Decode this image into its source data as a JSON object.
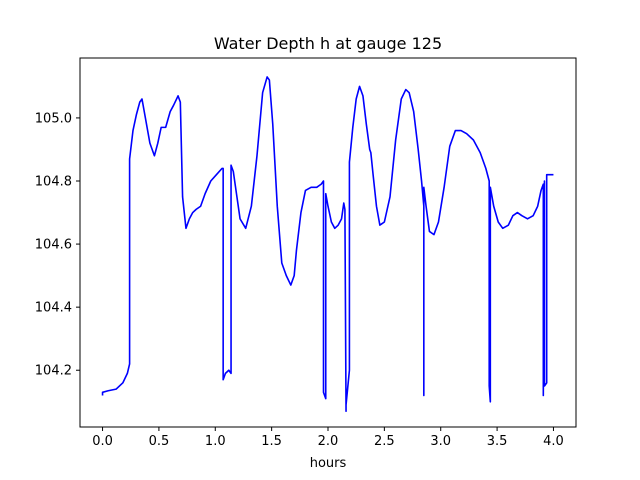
{
  "chart_data": {
    "type": "line",
    "title": "Water Depth h at gauge 125",
    "xlabel": "hours",
    "ylabel": "",
    "xlim": [
      -0.2,
      4.2
    ],
    "ylim": [
      104.02,
      105.19
    ],
    "grid": false,
    "x_ticks": [
      0.0,
      0.5,
      1.0,
      1.5,
      2.0,
      2.5,
      3.0,
      3.5,
      4.0
    ],
    "x_tick_labels": [
      "0.0",
      "0.5",
      "1.0",
      "1.5",
      "2.0",
      "2.5",
      "3.0",
      "3.5",
      "4.0"
    ],
    "y_ticks": [
      104.2,
      104.4,
      104.6,
      104.8,
      105.0
    ],
    "y_tick_labels": [
      "104.2",
      "104.4",
      "104.6",
      "104.8",
      "105.0"
    ],
    "series": [
      {
        "color": "#0000ff",
        "x": [
          0.0,
          0.0,
          0.05,
          0.12,
          0.18,
          0.22,
          0.24,
          0.24,
          0.27,
          0.3,
          0.33,
          0.35,
          0.38,
          0.42,
          0.46,
          0.49,
          0.52,
          0.56,
          0.6,
          0.63,
          0.67,
          0.69,
          0.71,
          0.74,
          0.77,
          0.8,
          0.83,
          0.87,
          0.91,
          0.96,
          1.01,
          1.06,
          1.07,
          1.07,
          1.09,
          1.12,
          1.14,
          1.14,
          1.16,
          1.18,
          1.22,
          1.27,
          1.32,
          1.37,
          1.42,
          1.46,
          1.48,
          1.51,
          1.55,
          1.59,
          1.63,
          1.67,
          1.7,
          1.72,
          1.76,
          1.8,
          1.85,
          1.9,
          1.94,
          1.96,
          1.96,
          1.98,
          1.98,
          2.0,
          2.03,
          2.06,
          2.09,
          2.12,
          2.14,
          2.15,
          2.16,
          2.16,
          2.19,
          2.19,
          2.22,
          2.25,
          2.28,
          2.31,
          2.34,
          2.37,
          2.38,
          2.4,
          2.43,
          2.46,
          2.5,
          2.55,
          2.6,
          2.65,
          2.69,
          2.72,
          2.76,
          2.8,
          2.83,
          2.85,
          2.85,
          2.85,
          2.87,
          2.9,
          2.94,
          2.98,
          3.03,
          3.08,
          3.13,
          3.18,
          3.23,
          3.29,
          3.35,
          3.4,
          3.43,
          3.43,
          3.44,
          3.44,
          3.47,
          3.51,
          3.55,
          3.6,
          3.64,
          3.68,
          3.72,
          3.77,
          3.82,
          3.86,
          3.89,
          3.91,
          3.91,
          3.92,
          3.92,
          3.94,
          3.94,
          3.95,
          3.95,
          4.0
        ],
        "values": [
          104.12,
          104.13,
          104.135,
          104.14,
          104.16,
          104.19,
          104.22,
          104.87,
          104.96,
          105.01,
          105.05,
          105.06,
          105.0,
          104.92,
          104.88,
          104.92,
          104.97,
          104.97,
          105.02,
          105.04,
          105.07,
          105.05,
          104.75,
          104.65,
          104.68,
          104.7,
          104.71,
          104.72,
          104.76,
          104.8,
          104.82,
          104.84,
          104.84,
          104.17,
          104.19,
          104.2,
          104.19,
          104.85,
          104.83,
          104.78,
          104.68,
          104.65,
          104.72,
          104.88,
          105.08,
          105.13,
          105.12,
          104.98,
          104.72,
          104.54,
          104.5,
          104.47,
          104.5,
          104.58,
          104.7,
          104.77,
          104.78,
          104.78,
          104.79,
          104.8,
          104.13,
          104.11,
          104.76,
          104.72,
          104.67,
          104.65,
          104.66,
          104.68,
          104.73,
          104.71,
          104.07,
          104.09,
          104.2,
          104.86,
          104.97,
          105.06,
          105.1,
          105.07,
          104.98,
          104.9,
          104.89,
          104.82,
          104.72,
          104.66,
          104.67,
          104.75,
          104.93,
          105.06,
          105.09,
          105.08,
          105.02,
          104.9,
          104.8,
          104.72,
          104.12,
          104.78,
          104.72,
          104.64,
          104.63,
          104.67,
          104.78,
          104.91,
          104.96,
          104.96,
          104.95,
          104.93,
          104.89,
          104.84,
          104.8,
          104.15,
          104.1,
          104.78,
          104.72,
          104.67,
          104.65,
          104.66,
          104.69,
          104.7,
          104.69,
          104.68,
          104.69,
          104.72,
          104.77,
          104.79,
          104.12,
          104.8,
          104.15,
          104.16,
          104.82,
          104.82,
          104.82,
          104.82
        ]
      }
    ]
  }
}
